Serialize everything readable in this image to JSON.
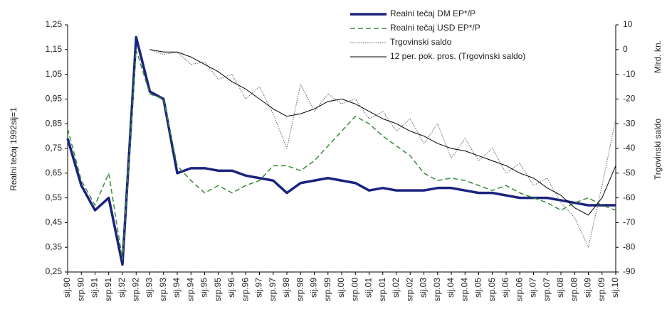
{
  "chart_data": {
    "type": "line",
    "ylabel": "Realni tečaj 1992sij=1",
    "y2label_unit": "Mlrd. kn.",
    "y2label": "Trgovinski saldo",
    "categories": [
      "sij.90",
      "srp.90",
      "sij.91",
      "srp.91",
      "sij.92",
      "srp.92",
      "sij.93",
      "srp.93",
      "sij.94",
      "srp.94",
      "sij.95",
      "srp.95",
      "sij.96",
      "srp.96",
      "sij.97",
      "srp.97",
      "sij.98",
      "srp.98",
      "sij.99",
      "srp.99",
      "sij.00",
      "srp.00",
      "sij.01",
      "srp.01",
      "sij.02",
      "srp.02",
      "sij.03",
      "srp.03",
      "sij.04",
      "srp.04",
      "sij.05",
      "srp.05",
      "sij.06",
      "srp.06",
      "sij.07",
      "srp.07",
      "sij.08",
      "srp.08",
      "sij.09",
      "srp.09",
      "sij.10"
    ],
    "ylim": [
      0.25,
      1.25
    ],
    "yticks": [
      {
        "value": 0.25,
        "label": "0,25"
      },
      {
        "value": 0.35,
        "label": "0,35"
      },
      {
        "value": 0.45,
        "label": "0,45"
      },
      {
        "value": 0.55,
        "label": "0,55"
      },
      {
        "value": 0.65,
        "label": "0,65"
      },
      {
        "value": 0.75,
        "label": "0,75"
      },
      {
        "value": 0.85,
        "label": "0,85"
      },
      {
        "value": 0.95,
        "label": "0,95"
      },
      {
        "value": 1.05,
        "label": "1,05"
      },
      {
        "value": 1.15,
        "label": "1,15"
      },
      {
        "value": 1.25,
        "label": "1,25"
      }
    ],
    "y2lim": [
      -90,
      10
    ],
    "y2ticks": [
      -90,
      -80,
      -70,
      -60,
      -50,
      -40,
      -30,
      -20,
      -10,
      0,
      10
    ],
    "series": [
      {
        "name": "Realni tečaj DM EP*/P",
        "color": "#1a237e",
        "style": "solid",
        "width": 3.5,
        "values": [
          0.79,
          0.6,
          0.5,
          0.55,
          0.28,
          1.2,
          0.98,
          0.95,
          0.65,
          0.67,
          0.67,
          0.66,
          0.66,
          0.64,
          0.63,
          0.62,
          0.57,
          0.61,
          0.62,
          0.63,
          0.62,
          0.61,
          0.58,
          0.59,
          0.58,
          0.58,
          0.58,
          0.59,
          0.59,
          0.58,
          0.57,
          0.57,
          0.56,
          0.55,
          0.55,
          0.55,
          0.54,
          0.53,
          0.52,
          0.52,
          0.52
        ]
      },
      {
        "name": "Realni tečaj USD EP*/P",
        "color": "#3a8a3a",
        "style": "dashed",
        "width": 1.5,
        "values": [
          0.83,
          0.62,
          0.52,
          0.65,
          0.3,
          1.15,
          0.97,
          0.95,
          0.68,
          0.62,
          0.57,
          0.6,
          0.57,
          0.6,
          0.62,
          0.68,
          0.68,
          0.66,
          0.7,
          0.76,
          0.82,
          0.88,
          0.85,
          0.8,
          0.76,
          0.72,
          0.65,
          0.62,
          0.63,
          0.62,
          0.6,
          0.58,
          0.6,
          0.57,
          0.55,
          0.53,
          0.5,
          0.53,
          0.55,
          0.52,
          0.5
        ]
      },
      {
        "name": "Trgovinski saldo",
        "color": "#666666",
        "style": "dotted",
        "width": 1,
        "axis": "y2",
        "values": [
          null,
          null,
          null,
          null,
          null,
          null,
          0,
          -2,
          -1,
          -6,
          -5,
          -12,
          -10,
          -20,
          -15,
          -26,
          -40,
          -14,
          -25,
          -18,
          -22,
          -20,
          -28,
          -25,
          -33,
          -28,
          -38,
          -30,
          -44,
          -36,
          -45,
          -40,
          -50,
          -46,
          -55,
          -52,
          -62,
          -68,
          -80,
          -55,
          -28
        ]
      },
      {
        "name": "12 per. pok. pros. (Trgovinski saldo)",
        "color": "#000000",
        "style": "solid",
        "width": 1,
        "axis": "y2",
        "values": [
          null,
          null,
          null,
          null,
          null,
          null,
          0,
          -1,
          -1,
          -3,
          -6,
          -9,
          -13,
          -16,
          -20,
          -24,
          -27,
          -26,
          -24,
          -21,
          -20,
          -22,
          -25,
          -28,
          -30,
          -33,
          -35,
          -38,
          -40,
          -41,
          -43,
          -45,
          -47,
          -50,
          -52,
          -56,
          -59,
          -64,
          -67,
          -60,
          -47
        ]
      }
    ]
  }
}
